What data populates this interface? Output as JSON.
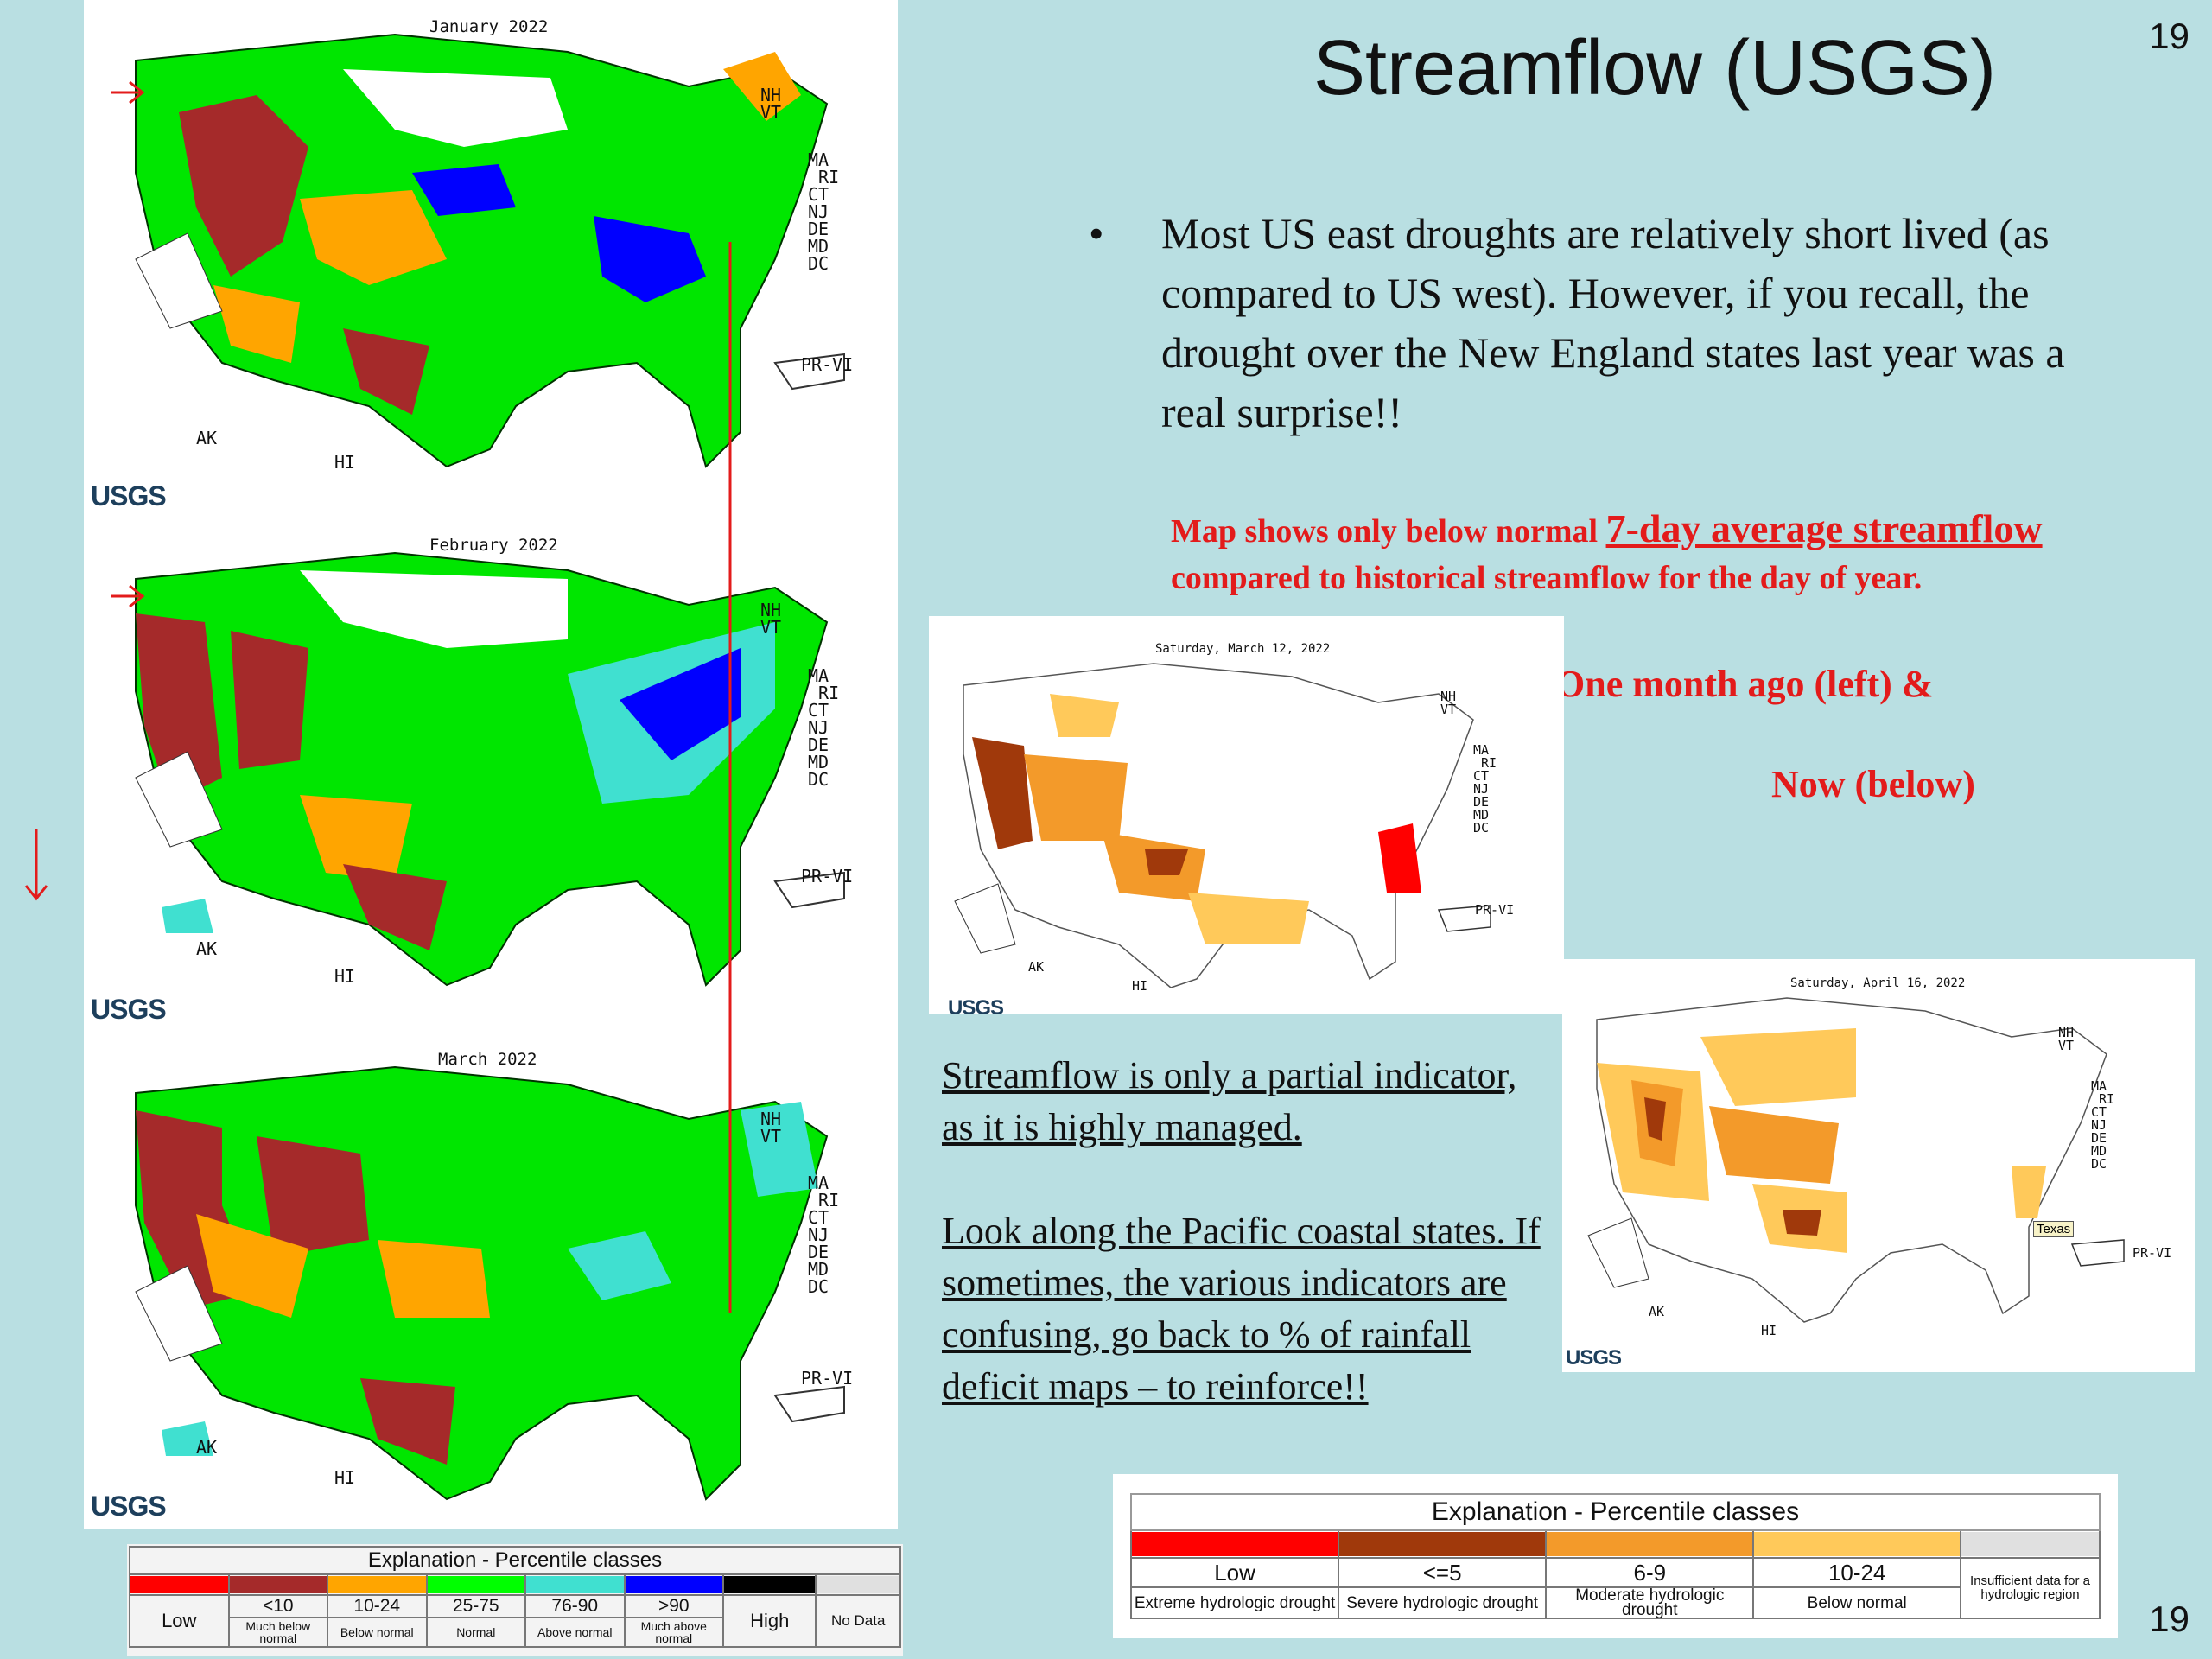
{
  "title": "Streamflow (USGS)",
  "page_number": "19",
  "bullet": "Most US east  droughts are relatively short lived (as compared to US west). However, if you recall,  the drought over the New England states last year was a real surprise!!",
  "red_note": {
    "prefix": "Map shows only  below normal",
    "emphasis": "7-day average streamflow",
    "suffix": "compared to historical streamflow for the day of year."
  },
  "month_ago": "One month ago (left)  &",
  "now": "Now (below)",
  "note_para1": "Streamflow is only a partial indicator, as it is highly managed.",
  "note_para2": "Look along the Pacific coastal states.  If sometimes, the various indicators are confusing, go back to % of rainfall deficit maps – to reinforce!!",
  "maps": {
    "jan": {
      "title": "January 2022"
    },
    "feb": {
      "title": "February 2022"
    },
    "mar": {
      "title": "March 2022"
    },
    "drought_mar": {
      "title": "Saturday, March 12, 2022"
    },
    "drought_apr": {
      "title": "Saturday, April 16, 2022",
      "callout": "Texas"
    }
  },
  "state_labels": {
    "nh": "NH",
    "vt": "VT",
    "ma": "MA",
    "ri": "RI",
    "ct": "CT",
    "nj": "NJ",
    "de": "DE",
    "md": "MD",
    "dc": "DC",
    "prvi": "PR-VI",
    "ak": "AK",
    "hi": "HI"
  },
  "logo_text": "USGS",
  "legend_left": {
    "title": "Explanation - Percentile classes",
    "low": "Low",
    "high": "High",
    "no_data": "No Data",
    "classes": [
      {
        "range": "<10",
        "desc": "Much below normal",
        "color": "#a52a2a"
      },
      {
        "range": "10-24",
        "desc": "Below normal",
        "color": "#ffa500"
      },
      {
        "range": "25-75",
        "desc": "Normal",
        "color": "#00ff00"
      },
      {
        "range": "76-90",
        "desc": "Above normal",
        "color": "#40e0d0"
      },
      {
        "range": ">90",
        "desc": "Much above normal",
        "color": "#0000ff"
      }
    ],
    "colors": {
      "low": "#ff0000",
      "high": "#000000",
      "no_data": "#e0e0e0"
    }
  },
  "legend_right": {
    "title": "Explanation - Percentile classes",
    "classes": [
      {
        "range": "Low",
        "desc": "Extreme hydrologic drought",
        "color": "#ff0000"
      },
      {
        "range": "<=5",
        "desc": "Severe hydrologic drought",
        "color": "#a0390b"
      },
      {
        "range": "6-9",
        "desc": "Moderate hydrologic drought",
        "color": "#f39a2a"
      },
      {
        "range": "10-24",
        "desc": "Below normal",
        "color": "#ffc95a"
      }
    ],
    "insufficient": "Insufficient data for a hydrologic region",
    "insufficient_color": "#e0e0e0"
  }
}
